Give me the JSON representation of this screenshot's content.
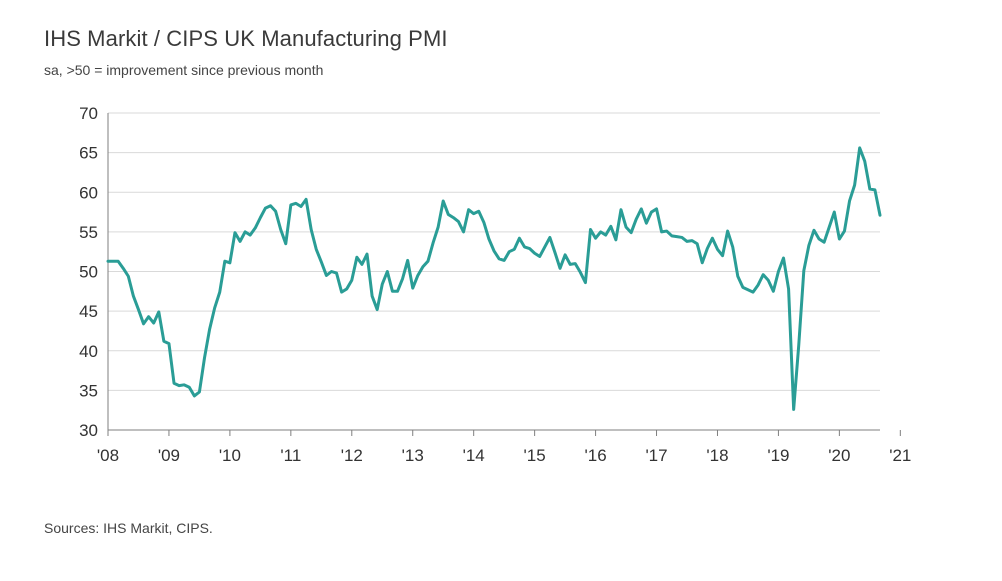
{
  "title": "IHS Markit / CIPS UK Manufacturing PMI",
  "subtitle": "sa, >50 = improvement since previous month",
  "source": "Sources: IHS Markit, CIPS.",
  "colors": {
    "line": "#2a9d96",
    "grid": "#d9d9d9",
    "axis": "#7f7f7f"
  },
  "chart_data": {
    "type": "line",
    "title": "IHS Markit / CIPS UK Manufacturing PMI",
    "subtitle": "sa, >50 = improvement since previous month",
    "xlabel": "",
    "ylabel": "",
    "ylim": [
      30,
      70
    ],
    "yticks": [
      "30",
      "35",
      "40",
      "45",
      "50",
      "55",
      "60",
      "65",
      "70"
    ],
    "xticks": [
      "'08",
      "'09",
      "'10",
      "'11",
      "'12",
      "'13",
      "'14",
      "'15",
      "'16",
      "'17",
      "'18",
      "'19",
      "'20",
      "'21"
    ],
    "grid": true,
    "x_start": "2008-01",
    "x_end": "2021-09",
    "series": [
      {
        "name": "",
        "frequency": "monthly",
        "values": [
          51.3,
          51.3,
          51.3,
          50.4,
          49.4,
          46.9,
          45.2,
          43.4,
          44.3,
          43.5,
          44.9,
          41.2,
          40.9,
          35.9,
          35.6,
          35.7,
          35.4,
          34.3,
          34.8,
          39.1,
          42.7,
          45.4,
          47.4,
          51.3,
          51.1,
          54.9,
          53.8,
          55.0,
          54.6,
          55.5,
          56.8,
          58.0,
          58.3,
          57.6,
          55.3,
          53.5,
          58.4,
          58.6,
          58.2,
          59.1,
          55.3,
          52.8,
          51.2,
          49.5,
          50.0,
          49.8,
          47.4,
          47.8,
          48.9,
          51.8,
          50.9,
          52.2,
          46.9,
          45.2,
          48.4,
          50.0,
          47.5,
          47.5,
          49.1,
          51.4,
          47.9,
          49.5,
          50.6,
          51.3,
          53.6,
          55.6,
          58.9,
          57.2,
          56.8,
          56.3,
          55.0,
          57.8,
          57.3,
          57.6,
          56.2,
          54.1,
          52.6,
          51.6,
          51.4,
          52.5,
          52.8,
          54.2,
          53.1,
          52.9,
          52.3,
          51.9,
          53.1,
          54.3,
          52.4,
          50.4,
          52.1,
          50.9,
          51.0,
          49.9,
          48.6,
          55.3,
          54.2,
          55.0,
          54.6,
          55.7,
          54.0,
          57.8,
          55.6,
          54.9,
          56.6,
          57.9,
          56.1,
          57.5,
          57.9,
          55.0,
          55.1,
          54.5,
          54.4,
          54.3,
          53.8,
          53.9,
          53.5,
          51.1,
          52.9,
          54.2,
          52.8,
          52.0,
          55.1,
          53.1,
          49.4,
          48.0,
          47.7,
          47.4,
          48.3,
          49.6,
          48.9,
          47.5,
          50.0,
          51.7,
          47.8,
          32.6,
          40.7,
          50.1,
          53.3,
          55.2,
          54.1,
          53.7,
          55.6,
          57.5,
          54.1,
          55.1,
          58.9,
          60.9,
          65.6,
          63.9,
          60.4,
          60.3,
          57.1
        ]
      }
    ]
  }
}
